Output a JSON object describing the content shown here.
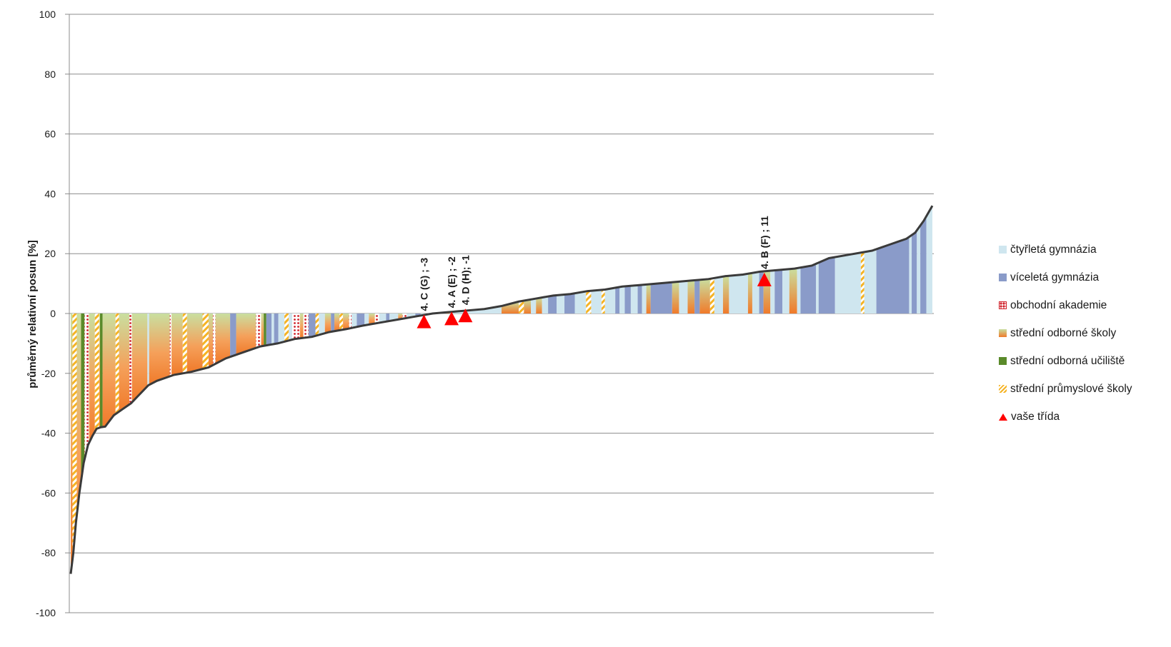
{
  "chart_data": {
    "type": "area",
    "title": "",
    "xlabel": "",
    "ylabel": "průměrný relativní posun [%]",
    "ylim": [
      -100,
      100
    ],
    "yticks": [
      "100",
      "80",
      "60",
      "40",
      "20",
      "0",
      "-20",
      "-40",
      "-60",
      "-80",
      "-100"
    ],
    "grid": true,
    "legend_position": "right",
    "curve": {
      "x": [
        0,
        0.3,
        0.6,
        1,
        1.5,
        2,
        2.5,
        3,
        3.5,
        4,
        5,
        6,
        7,
        8,
        9,
        10,
        12,
        14,
        16,
        18,
        20,
        22,
        24,
        26,
        28,
        30,
        32,
        34,
        36,
        38,
        40,
        42,
        44,
        46,
        48,
        50,
        52,
        54,
        56,
        58,
        60,
        62,
        64,
        66,
        68,
        70,
        72,
        74,
        76,
        78,
        80,
        82,
        84,
        86,
        88,
        90,
        92,
        93,
        94,
        95,
        96,
        97,
        98,
        99,
        100
      ],
      "y": [
        -87,
        -80,
        -70,
        -60,
        -50,
        -44,
        -41,
        -38.5,
        -38,
        -37.8,
        -34,
        -32,
        -30,
        -27,
        -24,
        -22.5,
        -20.5,
        -19.5,
        -18,
        -15,
        -13,
        -11,
        -10,
        -8.5,
        -7.8,
        -6.2,
        -5.2,
        -4,
        -3,
        -2,
        -1,
        0,
        0.5,
        1,
        1.5,
        2.5,
        4,
        5,
        6,
        6.5,
        7.5,
        8,
        9,
        9.5,
        10,
        10.5,
        11,
        11.5,
        12.5,
        13,
        14,
        14.5,
        15,
        16,
        18.5,
        19.5,
        20.5,
        21,
        22,
        23,
        24,
        25,
        27,
        31,
        36
      ]
    },
    "categories": [
      {
        "key": "ctyrleta",
        "name": "čtyřletá gymnázia",
        "color": "#cfe6ef"
      },
      {
        "key": "vicelet",
        "name": "víceletá gymnázia",
        "color": "#8a9bc9"
      },
      {
        "key": "obchodni",
        "name": "obchodní akademie",
        "color": "#d0212a"
      },
      {
        "key": "sos",
        "name": "střední odborné školy",
        "color": "#f07a2a"
      },
      {
        "key": "sou",
        "name": "střední odborná učiliště",
        "color": "#5a8a2a"
      },
      {
        "key": "sps",
        "name": "střední průmyslové školy",
        "color": "#f5b324"
      }
    ],
    "bars": [
      {
        "from": 0,
        "to": 2.2,
        "cat": "sos"
      },
      {
        "from": 0.2,
        "to": 0.7,
        "cat": "sps"
      },
      {
        "from": 1.2,
        "to": 1.6,
        "cat": "sou"
      },
      {
        "from": 1.6,
        "to": 2.1,
        "cat": "obchodni"
      },
      {
        "from": 2.2,
        "to": 2.8,
        "cat": "sos"
      },
      {
        "from": 2.8,
        "to": 3.3,
        "cat": "sps"
      },
      {
        "from": 3.3,
        "to": 3.4,
        "cat": "sos"
      },
      {
        "from": 3.4,
        "to": 3.7,
        "cat": "sou"
      },
      {
        "from": 3.7,
        "to": 5.2,
        "cat": "sos"
      },
      {
        "from": 5.2,
        "to": 5.6,
        "cat": "sps"
      },
      {
        "from": 5.6,
        "to": 6.8,
        "cat": "sos"
      },
      {
        "from": 6.8,
        "to": 7.1,
        "cat": "obchodni"
      },
      {
        "from": 7.1,
        "to": 8.9,
        "cat": "sos"
      },
      {
        "from": 8.9,
        "to": 9.1,
        "cat": "ctyrleta"
      },
      {
        "from": 9.1,
        "to": 11.5,
        "cat": "sos"
      },
      {
        "from": 11.5,
        "to": 11.7,
        "cat": "obchodni"
      },
      {
        "from": 11.7,
        "to": 13.0,
        "cat": "sos"
      },
      {
        "from": 13.0,
        "to": 13.5,
        "cat": "sps"
      },
      {
        "from": 13.5,
        "to": 15.3,
        "cat": "sos"
      },
      {
        "from": 15.3,
        "to": 16.0,
        "cat": "sps"
      },
      {
        "from": 16.0,
        "to": 16.5,
        "cat": "sos"
      },
      {
        "from": 16.5,
        "to": 16.8,
        "cat": "obchodni"
      },
      {
        "from": 16.8,
        "to": 18.5,
        "cat": "sos"
      },
      {
        "from": 18.5,
        "to": 19.2,
        "cat": "vicelet"
      },
      {
        "from": 19.2,
        "to": 21.5,
        "cat": "sos"
      },
      {
        "from": 21.5,
        "to": 22.1,
        "cat": "obchodni"
      },
      {
        "from": 22.1,
        "to": 22.4,
        "cat": "sos"
      },
      {
        "from": 22.4,
        "to": 22.7,
        "cat": "sou"
      },
      {
        "from": 22.7,
        "to": 23.3,
        "cat": "vicelet"
      },
      {
        "from": 23.3,
        "to": 23.6,
        "cat": "ctyrleta"
      },
      {
        "from": 23.6,
        "to": 24.1,
        "cat": "vicelet"
      },
      {
        "from": 24.1,
        "to": 24.8,
        "cat": "ctyrleta"
      },
      {
        "from": 24.8,
        "to": 25.3,
        "cat": "sps"
      },
      {
        "from": 25.3,
        "to": 25.7,
        "cat": "ctyrleta"
      },
      {
        "from": 25.7,
        "to": 26.6,
        "cat": "obchodni"
      },
      {
        "from": 26.6,
        "to": 27.0,
        "cat": "sos"
      },
      {
        "from": 27.0,
        "to": 27.6,
        "cat": "obchodni"
      },
      {
        "from": 27.6,
        "to": 28.4,
        "cat": "vicelet"
      },
      {
        "from": 28.4,
        "to": 28.8,
        "cat": "sps"
      },
      {
        "from": 28.8,
        "to": 29.5,
        "cat": "ctyrleta"
      },
      {
        "from": 29.5,
        "to": 30.2,
        "cat": "sos"
      },
      {
        "from": 30.2,
        "to": 30.6,
        "cat": "vicelet"
      },
      {
        "from": 30.6,
        "to": 31.2,
        "cat": "sos"
      },
      {
        "from": 31.2,
        "to": 31.6,
        "cat": "sps"
      },
      {
        "from": 31.6,
        "to": 32.3,
        "cat": "sos"
      },
      {
        "from": 32.3,
        "to": 32.6,
        "cat": "obchodni"
      },
      {
        "from": 32.6,
        "to": 33.2,
        "cat": "ctyrleta"
      },
      {
        "from": 33.2,
        "to": 34.1,
        "cat": "vicelet"
      },
      {
        "from": 34.1,
        "to": 34.6,
        "cat": "ctyrleta"
      },
      {
        "from": 34.6,
        "to": 35.3,
        "cat": "sos"
      },
      {
        "from": 35.3,
        "to": 35.8,
        "cat": "obchodni"
      },
      {
        "from": 35.8,
        "to": 36.6,
        "cat": "ctyrleta"
      },
      {
        "from": 36.6,
        "to": 37.0,
        "cat": "vicelet"
      },
      {
        "from": 37.0,
        "to": 38.0,
        "cat": "ctyrleta"
      },
      {
        "from": 38.0,
        "to": 38.5,
        "cat": "sos"
      },
      {
        "from": 38.5,
        "to": 39.0,
        "cat": "obchodni"
      },
      {
        "from": 39.0,
        "to": 40.0,
        "cat": "ctyrleta"
      },
      {
        "from": 40.0,
        "to": 40.6,
        "cat": "vicelet"
      },
      {
        "from": 40.6,
        "to": 43.0,
        "cat": "ctyrleta"
      },
      {
        "from": 43.0,
        "to": 44.0,
        "cat": "sos"
      },
      {
        "from": 44.0,
        "to": 50.0,
        "cat": "ctyrleta"
      },
      {
        "from": 50.0,
        "to": 52.0,
        "cat": "sos"
      },
      {
        "from": 52.0,
        "to": 52.6,
        "cat": "sps"
      },
      {
        "from": 52.6,
        "to": 53.4,
        "cat": "sos"
      },
      {
        "from": 53.4,
        "to": 54.0,
        "cat": "ctyrleta"
      },
      {
        "from": 54.0,
        "to": 54.7,
        "cat": "sos"
      },
      {
        "from": 54.7,
        "to": 55.4,
        "cat": "ctyrleta"
      },
      {
        "from": 55.4,
        "to": 56.4,
        "cat": "vicelet"
      },
      {
        "from": 56.4,
        "to": 57.3,
        "cat": "ctyrleta"
      },
      {
        "from": 57.3,
        "to": 58.5,
        "cat": "vicelet"
      },
      {
        "from": 58.5,
        "to": 59.8,
        "cat": "ctyrleta"
      },
      {
        "from": 59.8,
        "to": 60.4,
        "cat": "sps"
      },
      {
        "from": 60.4,
        "to": 61.6,
        "cat": "ctyrleta"
      },
      {
        "from": 61.6,
        "to": 62.0,
        "cat": "sps"
      },
      {
        "from": 62.0,
        "to": 63.2,
        "cat": "ctyrleta"
      },
      {
        "from": 63.2,
        "to": 63.7,
        "cat": "vicelet"
      },
      {
        "from": 63.7,
        "to": 64.3,
        "cat": "ctyrleta"
      },
      {
        "from": 64.3,
        "to": 65.0,
        "cat": "vicelet"
      },
      {
        "from": 65.0,
        "to": 65.8,
        "cat": "ctyrleta"
      },
      {
        "from": 65.8,
        "to": 66.3,
        "cat": "vicelet"
      },
      {
        "from": 66.3,
        "to": 66.8,
        "cat": "ctyrleta"
      },
      {
        "from": 66.8,
        "to": 67.3,
        "cat": "sos"
      },
      {
        "from": 67.3,
        "to": 69.8,
        "cat": "vicelet"
      },
      {
        "from": 69.8,
        "to": 70.6,
        "cat": "sos"
      },
      {
        "from": 70.6,
        "to": 71.6,
        "cat": "ctyrleta"
      },
      {
        "from": 71.6,
        "to": 72.4,
        "cat": "sos"
      },
      {
        "from": 72.4,
        "to": 73.0,
        "cat": "vicelet"
      },
      {
        "from": 73.0,
        "to": 74.2,
        "cat": "sos"
      },
      {
        "from": 74.2,
        "to": 74.7,
        "cat": "sps"
      },
      {
        "from": 74.7,
        "to": 75.7,
        "cat": "ctyrleta"
      },
      {
        "from": 75.7,
        "to": 76.4,
        "cat": "sos"
      },
      {
        "from": 76.4,
        "to": 78.6,
        "cat": "ctyrleta"
      },
      {
        "from": 78.6,
        "to": 79.1,
        "cat": "sos"
      },
      {
        "from": 79.1,
        "to": 79.9,
        "cat": "ctyrleta"
      },
      {
        "from": 79.9,
        "to": 80.4,
        "cat": "vicelet"
      },
      {
        "from": 80.4,
        "to": 81.2,
        "cat": "sos"
      },
      {
        "from": 81.2,
        "to": 81.7,
        "cat": "ctyrleta"
      },
      {
        "from": 81.7,
        "to": 82.6,
        "cat": "vicelet"
      },
      {
        "from": 82.6,
        "to": 83.4,
        "cat": "ctyrleta"
      },
      {
        "from": 83.4,
        "to": 84.3,
        "cat": "sos"
      },
      {
        "from": 84.3,
        "to": 84.7,
        "cat": "ctyrleta"
      },
      {
        "from": 84.7,
        "to": 86.5,
        "cat": "vicelet"
      },
      {
        "from": 86.5,
        "to": 86.8,
        "cat": "ctyrleta"
      },
      {
        "from": 86.8,
        "to": 88.7,
        "cat": "vicelet"
      },
      {
        "from": 88.7,
        "to": 91.7,
        "cat": "ctyrleta"
      },
      {
        "from": 91.7,
        "to": 92.1,
        "cat": "sps"
      },
      {
        "from": 92.1,
        "to": 93.5,
        "cat": "ctyrleta"
      },
      {
        "from": 93.5,
        "to": 97.3,
        "cat": "vicelet"
      },
      {
        "from": 97.3,
        "to": 97.6,
        "cat": "ctyrleta"
      },
      {
        "from": 97.6,
        "to": 98.2,
        "cat": "vicelet"
      },
      {
        "from": 98.2,
        "to": 98.6,
        "cat": "ctyrleta"
      },
      {
        "from": 98.6,
        "to": 99.3,
        "cat": "vicelet"
      },
      {
        "from": 99.3,
        "to": 100,
        "cat": "ctyrleta"
      }
    ],
    "markers": [
      {
        "label": "4. C (G) ; -3",
        "x": 41.0,
        "y": -3
      },
      {
        "label": "4. A (E) ; -2",
        "x": 44.2,
        "y": -2
      },
      {
        "label": "4. D (H); -1",
        "x": 45.8,
        "y": -1
      },
      {
        "label": "4. B (F) ; 11",
        "x": 80.5,
        "y": 11
      }
    ]
  },
  "legend": [
    {
      "name": "čtyřletá gymnázia",
      "icon": "square-swatch"
    },
    {
      "name": "víceletá gymnázia",
      "icon": "square-swatch"
    },
    {
      "name": "obchodní akademie",
      "icon": "dotted-swatch"
    },
    {
      "name": "střední odborné školy",
      "icon": "gradient-swatch"
    },
    {
      "name": "střední odborná učiliště",
      "icon": "square-swatch"
    },
    {
      "name": "střední průmyslové školy",
      "icon": "striped-swatch"
    },
    {
      "name": "vaše třída",
      "icon": "triangle-marker"
    }
  ]
}
